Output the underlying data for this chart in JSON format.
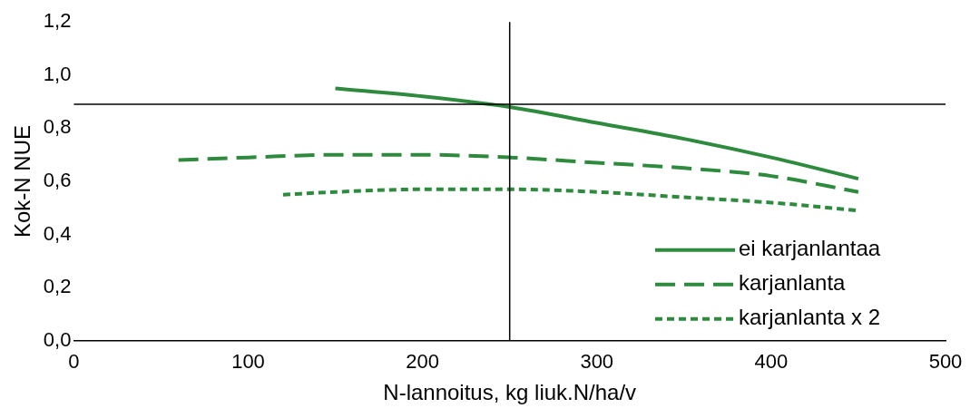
{
  "chart_data": {
    "type": "line",
    "xlabel": "N-lannoitus, kg liuk.N/ha/v",
    "ylabel": "Kok-N NUE",
    "xlim": [
      0,
      500
    ],
    "xticks": [
      0,
      100,
      200,
      300,
      400,
      500
    ],
    "ylim": [
      0,
      1.2
    ],
    "yticks": [
      {
        "value": 0,
        "label": "0,0"
      },
      {
        "value": 0.2,
        "label": "0,2"
      },
      {
        "value": 0.4,
        "label": "0,4"
      },
      {
        "value": 0.6,
        "label": "0,6"
      },
      {
        "value": 0.8,
        "label": "0,8"
      },
      {
        "value": 1,
        "label": "1,0"
      },
      {
        "value": 1.2,
        "label": "1,2"
      }
    ],
    "grid": false,
    "legend": "bottom right",
    "marker": "none",
    "series": [
      {
        "name": "ei karjanlantaa",
        "color": "#2e8b3e",
        "line_style": "solid",
        "x": [
          150,
          200,
          250,
          300,
          350,
          400,
          450
        ],
        "values": [
          0.95,
          0.92,
          0.88,
          0.82,
          0.76,
          0.69,
          0.61
        ]
      },
      {
        "name": "karjanlanta",
        "color": "#2e8b3e",
        "line_style": "dashed",
        "x": [
          60,
          100,
          150,
          200,
          250,
          300,
          350,
          400,
          450
        ],
        "values": [
          0.68,
          0.69,
          0.7,
          0.7,
          0.69,
          0.67,
          0.65,
          0.62,
          0.56
        ]
      },
      {
        "name": "karjanlanta x 2",
        "color": "#2e8b3e",
        "line_style": "dotted",
        "x": [
          120,
          150,
          200,
          250,
          300,
          350,
          400,
          450
        ],
        "values": [
          0.55,
          0.56,
          0.57,
          0.57,
          0.56,
          0.54,
          0.52,
          0.49
        ]
      }
    ],
    "ref_lines": [
      {
        "axis": "y",
        "value": 0.89,
        "color": "#000000"
      },
      {
        "axis": "x",
        "value": 250,
        "color": "#000000"
      }
    ]
  }
}
